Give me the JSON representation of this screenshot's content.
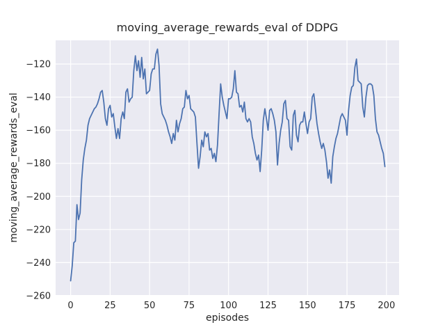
{
  "chart_data": {
    "type": "line",
    "title": "moving_average_rewards_eval of DDPG",
    "xlabel": "episodes",
    "ylabel": "moving_average_rewards_eval",
    "x_description": "episode index 0-199, one point per episode",
    "series": [
      {
        "name": "moving_average_rewards_eval",
        "color": "#4C72B0",
        "values": [
          -251,
          -242,
          -228,
          -227,
          -205,
          -214,
          -210,
          -190,
          -178,
          -171,
          -166,
          -157,
          -153,
          -151,
          -149,
          -147,
          -146,
          -144,
          -141,
          -137,
          -136,
          -143,
          -153,
          -157,
          -147,
          -145,
          -152,
          -150,
          -158,
          -165,
          -159,
          -165,
          -153,
          -149,
          -153,
          -137,
          -135,
          -143,
          -141,
          -140,
          -124,
          -115,
          -124,
          -118,
          -128,
          -116,
          -129,
          -123,
          -138,
          -137,
          -136,
          -126,
          -123,
          -123,
          -114,
          -111,
          -121,
          -144,
          -150,
          -152,
          -154,
          -157,
          -161,
          -164,
          -168,
          -162,
          -166,
          -154,
          -161,
          -156,
          -153,
          -147,
          -146,
          -136,
          -141,
          -139,
          -147,
          -148,
          -149,
          -152,
          -168,
          -183,
          -176,
          -166,
          -170,
          -161,
          -164,
          -162,
          -172,
          -171,
          -177,
          -174,
          -179,
          -169,
          -150,
          -132,
          -140,
          -145,
          -149,
          -153,
          -141,
          -141,
          -140,
          -135,
          -124,
          -137,
          -138,
          -146,
          -145,
          -149,
          -143,
          -153,
          -155,
          -153,
          -155,
          -164,
          -168,
          -174,
          -178,
          -175,
          -185,
          -172,
          -154,
          -147,
          -153,
          -160,
          -148,
          -147,
          -150,
          -154,
          -161,
          -181,
          -168,
          -160,
          -155,
          -144,
          -142,
          -153,
          -154,
          -170,
          -172,
          -151,
          -148,
          -163,
          -167,
          -157,
          -155,
          -155,
          -149,
          -156,
          -162,
          -155,
          -153,
          -140,
          -138,
          -147,
          -156,
          -162,
          -167,
          -171,
          -168,
          -172,
          -179,
          -189,
          -184,
          -192,
          -176,
          -170,
          -165,
          -162,
          -157,
          -152,
          -150,
          -152,
          -154,
          -163,
          -148,
          -139,
          -134,
          -133,
          -122,
          -117,
          -130,
          -131,
          -132,
          -146,
          -152,
          -140,
          -133,
          -132,
          -132,
          -133,
          -139,
          -153,
          -161,
          -163,
          -167,
          -171,
          -174,
          -182
        ]
      }
    ],
    "xticks": {
      "values": [
        0,
        25,
        50,
        75,
        100,
        125,
        150,
        175,
        200
      ],
      "labels": [
        "0",
        "25",
        "50",
        "75",
        "100",
        "125",
        "150",
        "175",
        "200"
      ]
    },
    "yticks": {
      "values": [
        -120,
        -140,
        -160,
        -180,
        -200,
        -220,
        -240,
        -260
      ],
      "labels": [
        "−120",
        "−140",
        "−160",
        "−180",
        "−200",
        "−220",
        "−240",
        "−260"
      ]
    },
    "xlim": [
      -9.5,
      208
    ],
    "ylim": [
      -259.6,
      -105.7
    ],
    "grid": true,
    "legend": false,
    "styles": {
      "figure_bg": "#FFFFFF",
      "axes_bg": "#EAEAF2",
      "grid_color": "#FFFFFF",
      "text_color": "#262626",
      "line_color": "#4C72B0"
    }
  }
}
